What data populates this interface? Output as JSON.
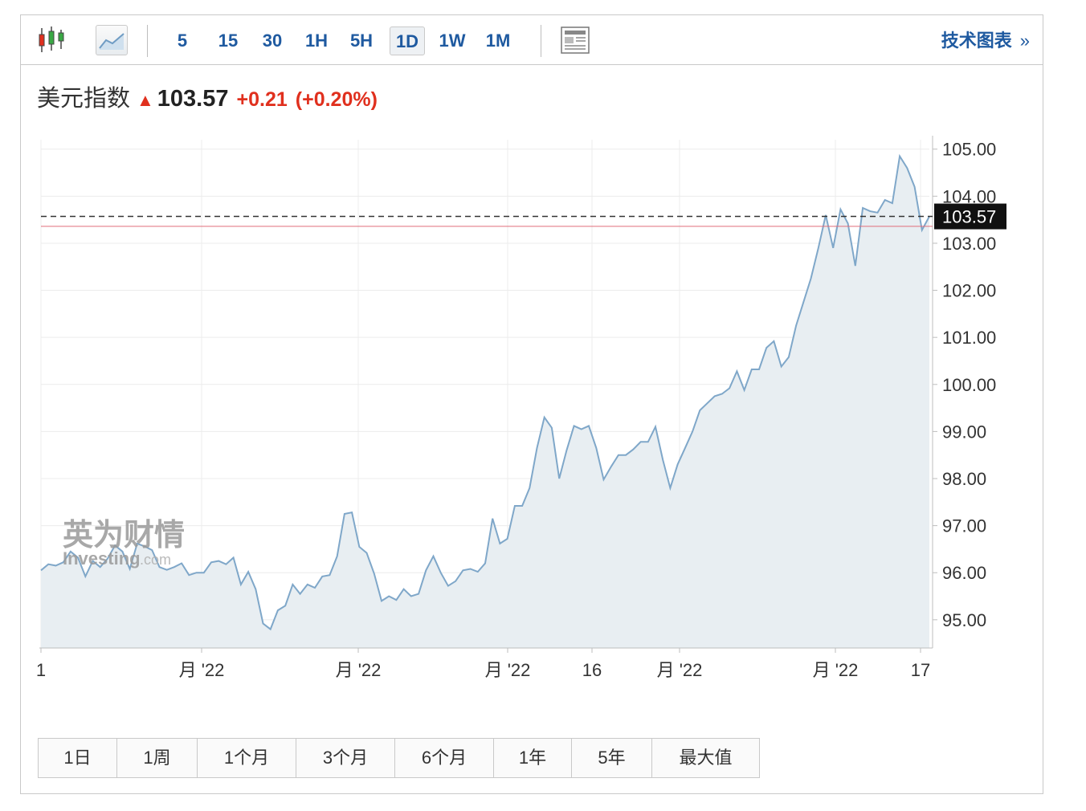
{
  "toolbar": {
    "chart_type_icons": [
      "candlestick-icon",
      "line-chart-icon"
    ],
    "timeframes": [
      "5",
      "15",
      "30",
      "1H",
      "5H",
      "1D",
      "1W",
      "1M"
    ],
    "active_timeframe": "1D",
    "news_icon": "news-list-icon",
    "tech_chart_label": "技术图表",
    "tech_chart_chevron": "»"
  },
  "quote": {
    "name": "美元指数",
    "direction_icon": "up-arrow-icon",
    "price": "103.57",
    "change": "+0.21",
    "change_pct": "(+0.20%)"
  },
  "watermark": {
    "cn": "英为财情",
    "en": "Investing",
    "suffix": ".com"
  },
  "ranges": [
    "1日",
    "1周",
    "1个月",
    "3个月",
    "6个月",
    "1年",
    "5年",
    "最大值"
  ],
  "colors": {
    "up": "#e0301e",
    "link": "#1f5aa0",
    "line": "#7fa7c9",
    "area": "#e8eef2",
    "price_tag_bg": "#111111",
    "reference_line": "#e06c7a"
  },
  "chart_data": {
    "type": "area",
    "ylim": [
      94.4,
      105.2
    ],
    "yticks": [
      95,
      96,
      97,
      98,
      99,
      100,
      101,
      102,
      103,
      104,
      105
    ],
    "ytick_labels": [
      "95.00",
      "96.00",
      "97.00",
      "98.00",
      "99.00",
      "100.00",
      "101.00",
      "102.00",
      "103.00",
      "104.00",
      "105.00"
    ],
    "x_labels": [
      "1",
      "月 '22",
      "月 '22",
      "月 '22",
      "16",
      "月 '22",
      "月 '22",
      "17"
    ],
    "current_price": 103.57,
    "current_price_label": "103.57",
    "reference_level": 103.36,
    "values": [
      96.05,
      96.18,
      96.15,
      96.22,
      96.45,
      96.32,
      95.92,
      96.25,
      96.12,
      96.3,
      96.58,
      96.45,
      96.08,
      96.62,
      96.56,
      96.48,
      96.12,
      96.06,
      96.12,
      96.2,
      95.95,
      96.0,
      96.0,
      96.22,
      96.25,
      96.18,
      96.32,
      95.75,
      96.02,
      95.65,
      94.92,
      94.8,
      95.2,
      95.3,
      95.75,
      95.55,
      95.75,
      95.68,
      95.92,
      95.95,
      96.35,
      97.25,
      97.28,
      96.55,
      96.42,
      95.98,
      95.4,
      95.5,
      95.42,
      95.65,
      95.5,
      95.55,
      96.05,
      96.35,
      96.0,
      95.72,
      95.82,
      96.05,
      96.08,
      96.02,
      96.2,
      97.15,
      96.62,
      96.72,
      97.42,
      97.42,
      97.8,
      98.65,
      99.3,
      99.08,
      98.0,
      98.6,
      99.12,
      99.05,
      99.12,
      98.65,
      97.98,
      98.25,
      98.5,
      98.5,
      98.62,
      98.78,
      98.78,
      99.1,
      98.4,
      97.8,
      98.3,
      98.65,
      99.0,
      99.45,
      99.6,
      99.75,
      99.8,
      99.92,
      100.28,
      99.88,
      100.32,
      100.32,
      100.78,
      100.92,
      100.38,
      100.58,
      101.25,
      101.75,
      102.25,
      102.9,
      103.6,
      102.9,
      103.72,
      103.42,
      102.52,
      103.75,
      103.68,
      103.65,
      103.92,
      103.85,
      104.85,
      104.6,
      104.2,
      103.28,
      103.57
    ]
  }
}
